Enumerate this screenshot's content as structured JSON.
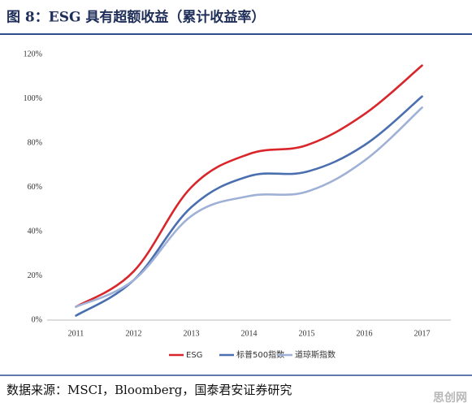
{
  "chart_data": {
    "type": "line",
    "title": "图 8：ESG 具有超额收益（累计收益率）",
    "source": "数据来源：MSCI，Bloomberg，国泰君安证券研究",
    "watermark": "思创网",
    "categories": [
      "2011",
      "2012",
      "2013",
      "2014",
      "2015",
      "2016",
      "2017"
    ],
    "series": [
      {
        "name": "ESG",
        "color": "#d9262b",
        "values": [
          6,
          22,
          60,
          75,
          79,
          93,
          115
        ]
      },
      {
        "name": "标普500指数",
        "color": "#4a6fb0",
        "values": [
          2,
          18,
          51,
          65,
          67,
          79,
          101
        ]
      },
      {
        "name": "道琼斯指数",
        "color": "#9fb1d6",
        "values": [
          6,
          18,
          47,
          56,
          58,
          72,
          96
        ]
      }
    ],
    "ylim": [
      0,
      120
    ],
    "yticks": [
      {
        "value": 0,
        "label": "0%"
      },
      {
        "value": 20,
        "label": "20%"
      },
      {
        "value": 40,
        "label": "40%"
      },
      {
        "value": 60,
        "label": "60%"
      },
      {
        "value": 80,
        "label": "80%"
      },
      {
        "value": 100,
        "label": "100%"
      },
      {
        "value": 120,
        "label": "120%"
      }
    ],
    "grid": false,
    "legend": "bottom"
  }
}
